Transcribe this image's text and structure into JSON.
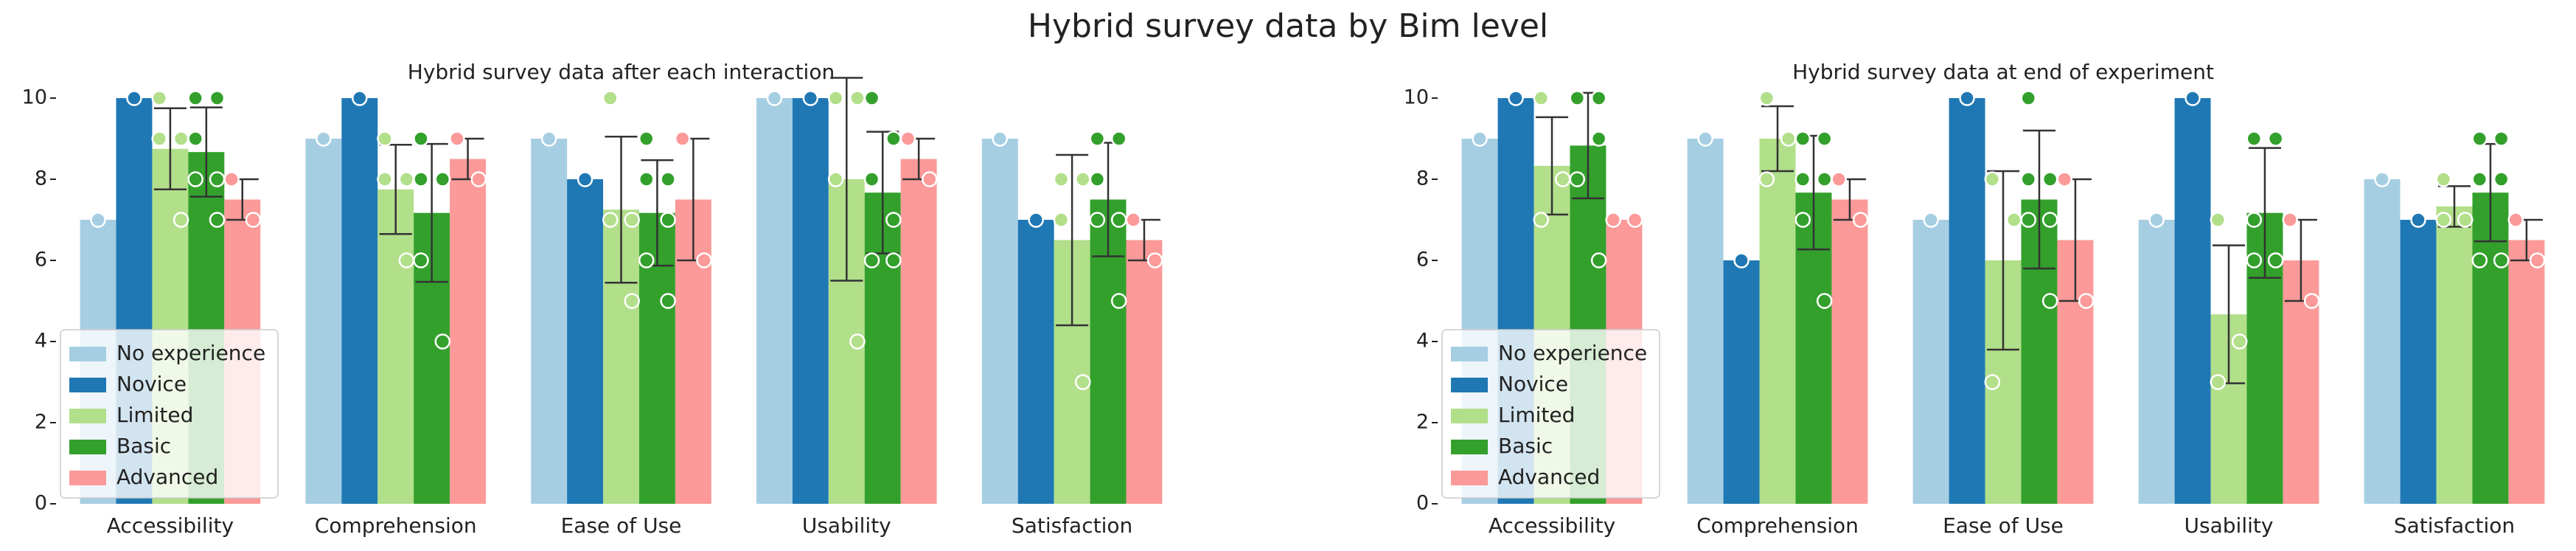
{
  "title": "Hybrid survey data by Bim level",
  "chart_data": [
    {
      "type": "bar",
      "title": "Hybrid survey data after each interaction",
      "categories": [
        "Accessibility",
        "Comprehension",
        "Ease of Use",
        "Usability",
        "Satisfaction"
      ],
      "ylim": [
        0,
        10
      ],
      "yticks": [
        0,
        2,
        4,
        6,
        8,
        10
      ],
      "legend": "lower left",
      "series": [
        {
          "name": "No experience",
          "color": "#a6cee3",
          "values": [
            7,
            9,
            9,
            10,
            9
          ],
          "errors": [
            null,
            null,
            null,
            null,
            null
          ],
          "points": [
            [
              7
            ],
            [
              9
            ],
            [
              9
            ],
            [
              10
            ],
            [
              9
            ]
          ]
        },
        {
          "name": "Novice",
          "color": "#1f78b4",
          "values": [
            10,
            10,
            8,
            10,
            7
          ],
          "errors": [
            null,
            null,
            null,
            null,
            null
          ],
          "points": [
            [
              10
            ],
            [
              10
            ],
            [
              8
            ],
            [
              10
            ],
            [
              7
            ]
          ]
        },
        {
          "name": "Limited",
          "color": "#b2df8a",
          "values": [
            8.75,
            7.75,
            7.25,
            8,
            6.5
          ],
          "errors": [
            1.0,
            1.1,
            1.8,
            2.5,
            2.1
          ],
          "points": [
            [
              10,
              9,
              9,
              7
            ],
            [
              9,
              8,
              8,
              6
            ],
            [
              10,
              7,
              7,
              5
            ],
            [
              10,
              10,
              8,
              4
            ],
            [
              8,
              8,
              7,
              3
            ]
          ]
        },
        {
          "name": "Basic",
          "color": "#33a02c",
          "values": [
            8.67,
            7.17,
            7.17,
            7.67,
            7.5
          ],
          "errors": [
            1.1,
            1.7,
            1.3,
            1.5,
            1.4
          ],
          "points": [
            [
              10,
              10,
              9,
              8,
              8,
              7
            ],
            [
              9,
              8,
              8,
              8,
              6,
              4
            ],
            [
              9,
              8,
              8,
              7,
              6,
              5
            ],
            [
              10,
              9,
              8,
              7,
              6,
              6
            ],
            [
              9,
              9,
              8,
              7,
              7,
              5
            ]
          ]
        },
        {
          "name": "Advanced",
          "color": "#fb9a99",
          "values": [
            7.5,
            8.5,
            7.5,
            8.5,
            6.5
          ],
          "errors": [
            0.5,
            0.5,
            1.5,
            0.5,
            0.5
          ],
          "points": [
            [
              8,
              7
            ],
            [
              9,
              8
            ],
            [
              9,
              6
            ],
            [
              9,
              8
            ],
            [
              7,
              6
            ]
          ]
        }
      ]
    },
    {
      "type": "bar",
      "title": "Hybrid survey data at end of experiment",
      "categories": [
        "Accessibility",
        "Comprehension",
        "Ease of Use",
        "Usability",
        "Satisfaction"
      ],
      "ylim": [
        0,
        10
      ],
      "yticks": [
        0,
        2,
        4,
        6,
        8,
        10
      ],
      "legend": "lower left",
      "series": [
        {
          "name": "No experience",
          "color": "#a6cee3",
          "values": [
            9,
            9,
            7,
            7,
            8
          ],
          "errors": [
            null,
            null,
            null,
            null,
            null
          ],
          "points": [
            [
              9
            ],
            [
              9
            ],
            [
              7
            ],
            [
              7
            ],
            [
              8
            ]
          ]
        },
        {
          "name": "Novice",
          "color": "#1f78b4",
          "values": [
            10,
            6,
            10,
            10,
            7
          ],
          "errors": [
            null,
            null,
            null,
            null,
            null
          ],
          "points": [
            [
              10
            ],
            [
              6
            ],
            [
              10
            ],
            [
              10
            ],
            [
              7
            ]
          ]
        },
        {
          "name": "Limited",
          "color": "#b2df8a",
          "values": [
            8.33,
            9,
            6,
            4.67,
            7.33
          ],
          "errors": [
            1.2,
            0.8,
            2.2,
            1.7,
            0.5
          ],
          "points": [
            [
              10,
              8,
              7
            ],
            [
              10,
              9,
              8
            ],
            [
              8,
              7,
              3
            ],
            [
              7,
              4,
              3
            ],
            [
              8,
              7,
              7
            ]
          ]
        },
        {
          "name": "Basic",
          "color": "#33a02c",
          "values": [
            8.83,
            7.67,
            7.5,
            7.17,
            7.67
          ],
          "errors": [
            1.3,
            1.4,
            1.7,
            1.6,
            1.2
          ],
          "points": [
            [
              10,
              10,
              10,
              9,
              8,
              6
            ],
            [
              9,
              9,
              8,
              8,
              7,
              5
            ],
            [
              10,
              8,
              8,
              7,
              7,
              5
            ],
            [
              9,
              9,
              7,
              6,
              6,
              6
            ],
            [
              9,
              9,
              8,
              8,
              6,
              6
            ]
          ]
        },
        {
          "name": "Advanced",
          "color": "#fb9a99",
          "values": [
            7,
            7.5,
            6.5,
            6,
            6.5
          ],
          "errors": [
            null,
            0.5,
            1.5,
            1.0,
            0.5
          ],
          "points": [
            [
              7,
              7
            ],
            [
              8,
              7
            ],
            [
              8,
              5
            ],
            [
              7,
              5
            ],
            [
              7,
              6
            ]
          ]
        }
      ]
    }
  ]
}
